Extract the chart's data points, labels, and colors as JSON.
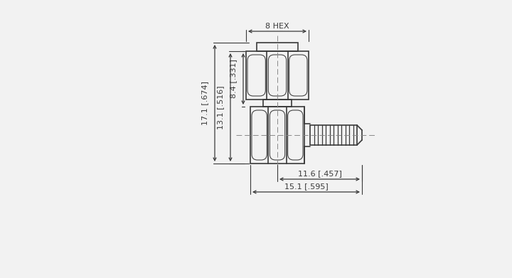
{
  "bg_color": "#f2f2f2",
  "line_color": "#3a3a3a",
  "dim_color": "#3a3a3a",
  "center_color": "#888888",
  "fig_width": 7.2,
  "fig_height": 3.91,
  "dpi": 100,
  "dims": {
    "hex_width_label": "8 HEX",
    "d1": "17.1 [.674]",
    "d2": "13.1 [.516]",
    "d3": "8.4 [.331]",
    "d4": "11.6 [.457]",
    "d5": "15.1 [.595]"
  }
}
